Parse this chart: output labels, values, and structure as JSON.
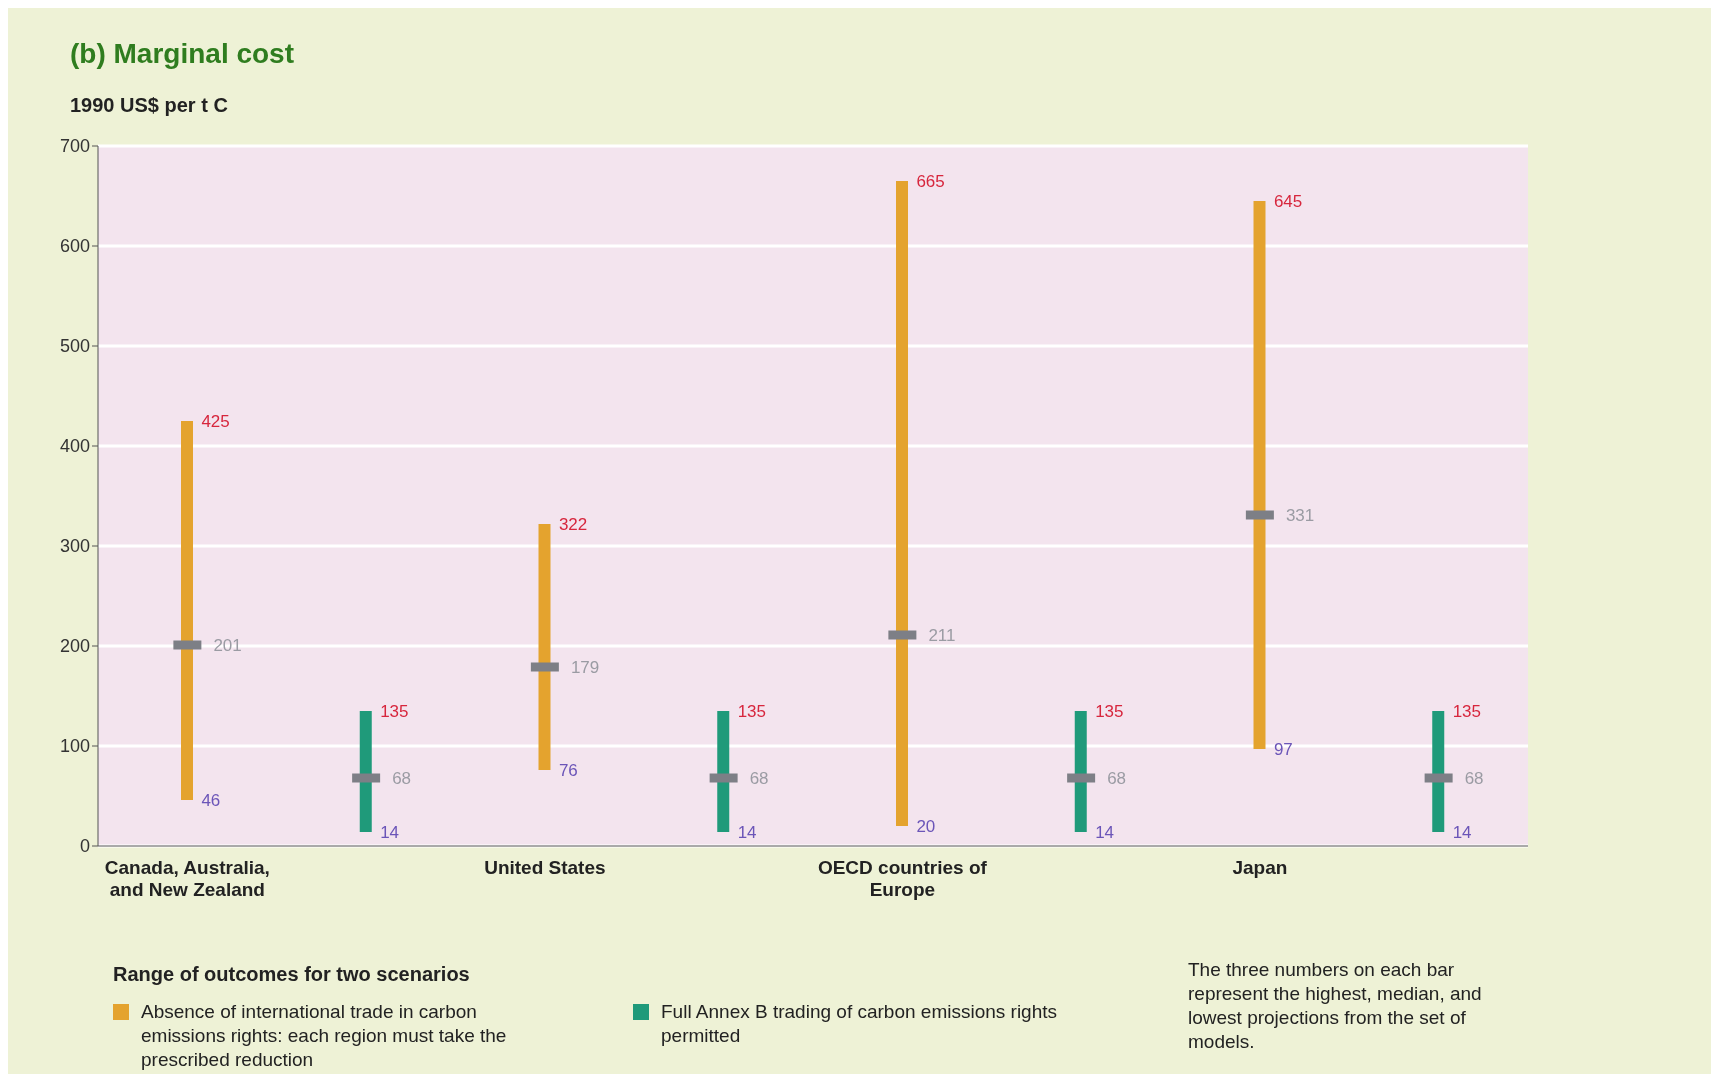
{
  "chart_data": {
    "type": "bar",
    "title": "(b) Marginal cost",
    "ylabel": "1990 US$ per t C",
    "legend_title": "Range of outcomes for two scenarios",
    "categories": [
      "Canada, Australia, and New Zealand",
      null,
      "United States",
      null,
      "OECD countries of Europe",
      null,
      "Japan",
      null
    ],
    "series": [
      {
        "name": "Absence of international trade in carbon emissions rights: each region must take the prescribed reduction",
        "color": "#e4a32e",
        "base": [
          46,
          null,
          76,
          null,
          20,
          null,
          97,
          null
        ],
        "values": [
          379,
          null,
          246,
          null,
          645,
          null,
          548,
          null
        ]
      },
      {
        "name": "Full Annex B trading of carbon emissions rights permitted",
        "color": "#1f9a7a",
        "base": [
          null,
          14,
          null,
          14,
          null,
          14,
          null,
          14
        ],
        "values": [
          null,
          121,
          null,
          121,
          null,
          121,
          null,
          121
        ]
      },
      {
        "type": "scatter",
        "color": "#7d7f86",
        "values": [
          201,
          68,
          179,
          68,
          211,
          68,
          331,
          68
        ],
        "value_labels": [
          "201",
          "68",
          "179",
          "68",
          "211",
          "68",
          "331",
          "68"
        ]
      }
    ],
    "ylim": [
      0,
      700
    ],
    "yticks": [
      0,
      100,
      200,
      300,
      400,
      500,
      600,
      700
    ],
    "grid": "y",
    "legend": "bottom",
    "annotations": [
      {
        "text": "425",
        "x": "Canada, Australia, and New Zealand",
        "y": 425
      },
      {
        "text": "46",
        "x": "Canada, Australia, and New Zealand",
        "y": 46
      },
      "135",
      "14",
      {
        "text": "322",
        "x": "United States",
        "y": 322
      },
      {
        "text": "76",
        "x": "United States",
        "y": 76
      },
      "135",
      "14",
      {
        "text": "665",
        "x": "OECD countries of Europe",
        "y": 665
      },
      {
        "text": "20",
        "x": "OECD countries of Europe",
        "y": 20
      },
      "135",
      "14",
      {
        "text": "645",
        "x": "Japan",
        "y": 645
      },
      {
        "text": "97",
        "x": "Japan",
        "y": 97
      },
      "135",
      "14",
      "The three numbers on each bar represent the highest, median, and lowest projections from the set of models."
    ]
  }
}
